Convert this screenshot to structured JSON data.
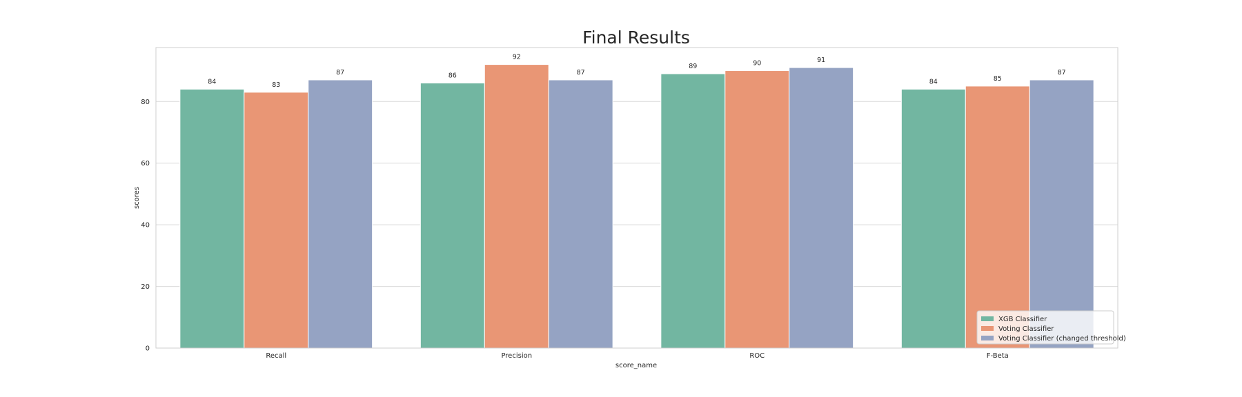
{
  "chart_data": {
    "type": "bar",
    "title": "Final Results",
    "xlabel": "score_name",
    "ylabel": "scores",
    "categories": [
      "Recall",
      "Precision",
      "ROC",
      "F-Beta"
    ],
    "series": [
      {
        "name": "XGB Classifier",
        "color": "#72b6a1",
        "values": [
          84,
          86,
          89,
          84
        ]
      },
      {
        "name": "Voting Classifier",
        "color": "#e99675",
        "values": [
          83,
          92,
          90,
          85
        ]
      },
      {
        "name": "Voting Classifier (changed threshold)",
        "color": "#95a3c3",
        "values": [
          87,
          87,
          91,
          87
        ]
      }
    ],
    "ylim": [
      0,
      97.5
    ],
    "yticks": [
      0,
      20,
      40,
      60,
      80
    ],
    "grid": true,
    "legend_position": "lower-right"
  }
}
